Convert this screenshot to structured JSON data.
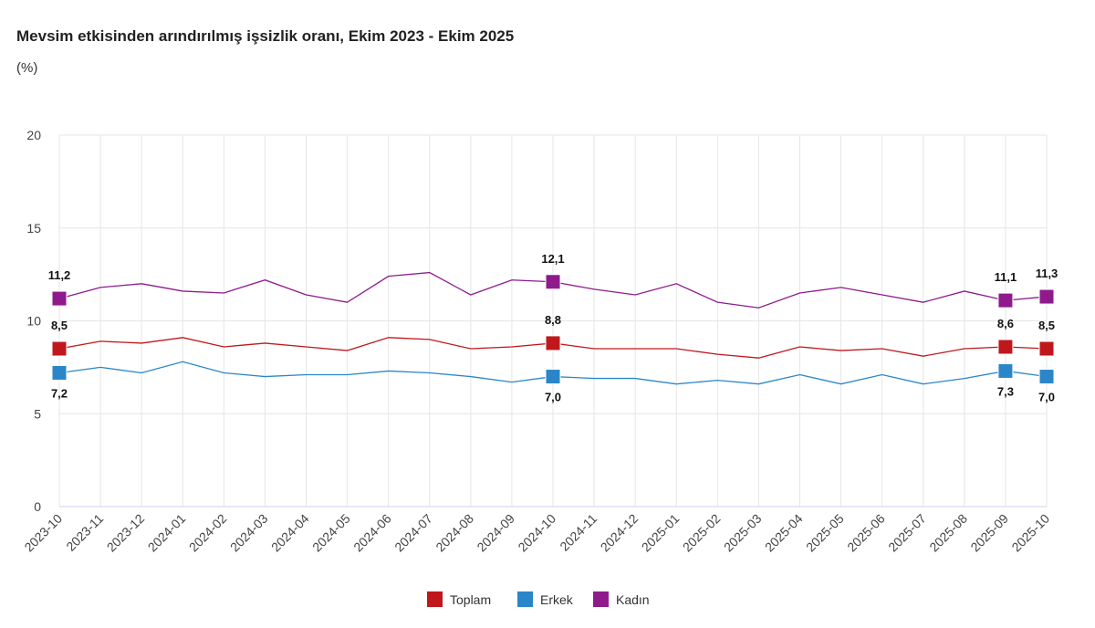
{
  "chart_data": {
    "type": "line",
    "title": "Mevsim etkisinden arındırılmış işsizlik oranı, Ekim 2023 - Ekim 2025",
    "ylabel": "(%)",
    "xlabel": "",
    "ylim": [
      0,
      20
    ],
    "yticks": [
      "0",
      "5",
      "10",
      "15",
      "20"
    ],
    "grid": true,
    "legend": "bottom",
    "categories": [
      "2023-10",
      "2023-11",
      "2023-12",
      "2024-01",
      "2024-02",
      "2024-03",
      "2024-04",
      "2024-05",
      "2024-06",
      "2024-07",
      "2024-08",
      "2024-09",
      "2024-10",
      "2024-11",
      "2024-12",
      "2025-01",
      "2025-02",
      "2025-03",
      "2025-04",
      "2025-05",
      "2025-06",
      "2025-07",
      "2025-08",
      "2025-09",
      "2025-10"
    ],
    "labeled_points": [
      0,
      12,
      23,
      24
    ],
    "series": [
      {
        "name": "Toplam",
        "color": "#c0171c",
        "label_pos": "above",
        "values": [
          8.5,
          8.9,
          8.8,
          9.1,
          8.6,
          8.8,
          8.6,
          8.4,
          9.1,
          9.0,
          8.5,
          8.6,
          8.8,
          8.5,
          8.5,
          8.5,
          8.2,
          8.0,
          8.6,
          8.4,
          8.5,
          8.1,
          8.5,
          8.6,
          8.5
        ],
        "labels": {
          "0": "8,5",
          "12": "8,8",
          "23": "8,6",
          "24": "8,5"
        }
      },
      {
        "name": "Erkek",
        "color": "#2a86c8",
        "label_pos": "below",
        "values": [
          7.2,
          7.5,
          7.2,
          7.8,
          7.2,
          7.0,
          7.1,
          7.1,
          7.3,
          7.2,
          7.0,
          6.7,
          7.0,
          6.9,
          6.9,
          6.6,
          6.8,
          6.6,
          7.1,
          6.6,
          7.1,
          6.6,
          6.9,
          7.3,
          7.0
        ],
        "labels": {
          "0": "7,2",
          "12": "7,0",
          "23": "7,3",
          "24": "7,0"
        }
      },
      {
        "name": "Kadın",
        "color": "#8e1a8c",
        "label_pos": "above",
        "values": [
          11.2,
          11.8,
          12.0,
          11.6,
          11.5,
          12.2,
          11.4,
          11.0,
          12.4,
          12.6,
          11.4,
          12.2,
          12.1,
          11.7,
          11.4,
          12.0,
          11.0,
          10.7,
          11.5,
          11.8,
          11.4,
          11.0,
          11.6,
          11.1,
          11.3
        ],
        "labels": {
          "0": "11,2",
          "12": "12,1",
          "23": "11,1",
          "24": "11,3"
        }
      }
    ]
  }
}
